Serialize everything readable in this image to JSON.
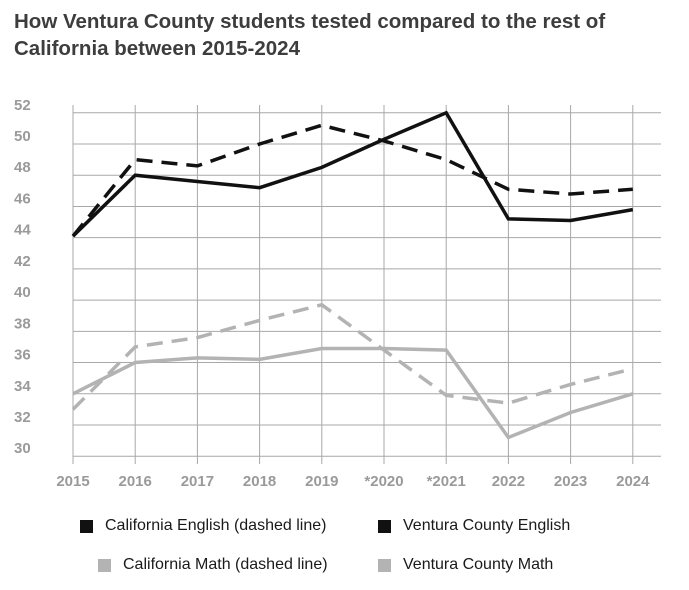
{
  "chart_data": {
    "type": "line",
    "title": "How Ventura County students tested compared to the rest of California between 2015-2024",
    "categories": [
      "2015",
      "2016",
      "2017",
      "2018",
      "2019",
      "*2020",
      "*2021",
      "2022",
      "2023",
      "2024"
    ],
    "yticks": [
      30,
      32,
      34,
      36,
      38,
      40,
      42,
      44,
      46,
      48,
      50,
      52
    ],
    "ylim": [
      29.5,
      52.5
    ],
    "grid": true,
    "legend_position": "bottom",
    "series": [
      {
        "name": "California English (dashed line)",
        "color": "#111111",
        "dashed": true,
        "values": [
          44.1,
          49.0,
          48.6,
          50.0,
          51.2,
          50.2,
          49.0,
          47.1,
          46.8,
          47.1
        ]
      },
      {
        "name": "Ventura County English",
        "color": "#111111",
        "dashed": false,
        "values": [
          44.1,
          48.0,
          47.6,
          47.2,
          48.5,
          50.3,
          52.0,
          45.2,
          45.1,
          45.8
        ]
      },
      {
        "name": "California Math (dashed line)",
        "color": "#b3b3b3",
        "dashed": true,
        "values": [
          33.0,
          37.0,
          37.6,
          38.7,
          39.7,
          36.8,
          33.9,
          33.4,
          34.6,
          35.6
        ]
      },
      {
        "name": "Ventura County Math",
        "color": "#b3b3b3",
        "dashed": false,
        "values": [
          34.0,
          36.0,
          36.3,
          36.2,
          36.9,
          36.9,
          36.8,
          31.2,
          32.8,
          34.0
        ]
      }
    ]
  }
}
